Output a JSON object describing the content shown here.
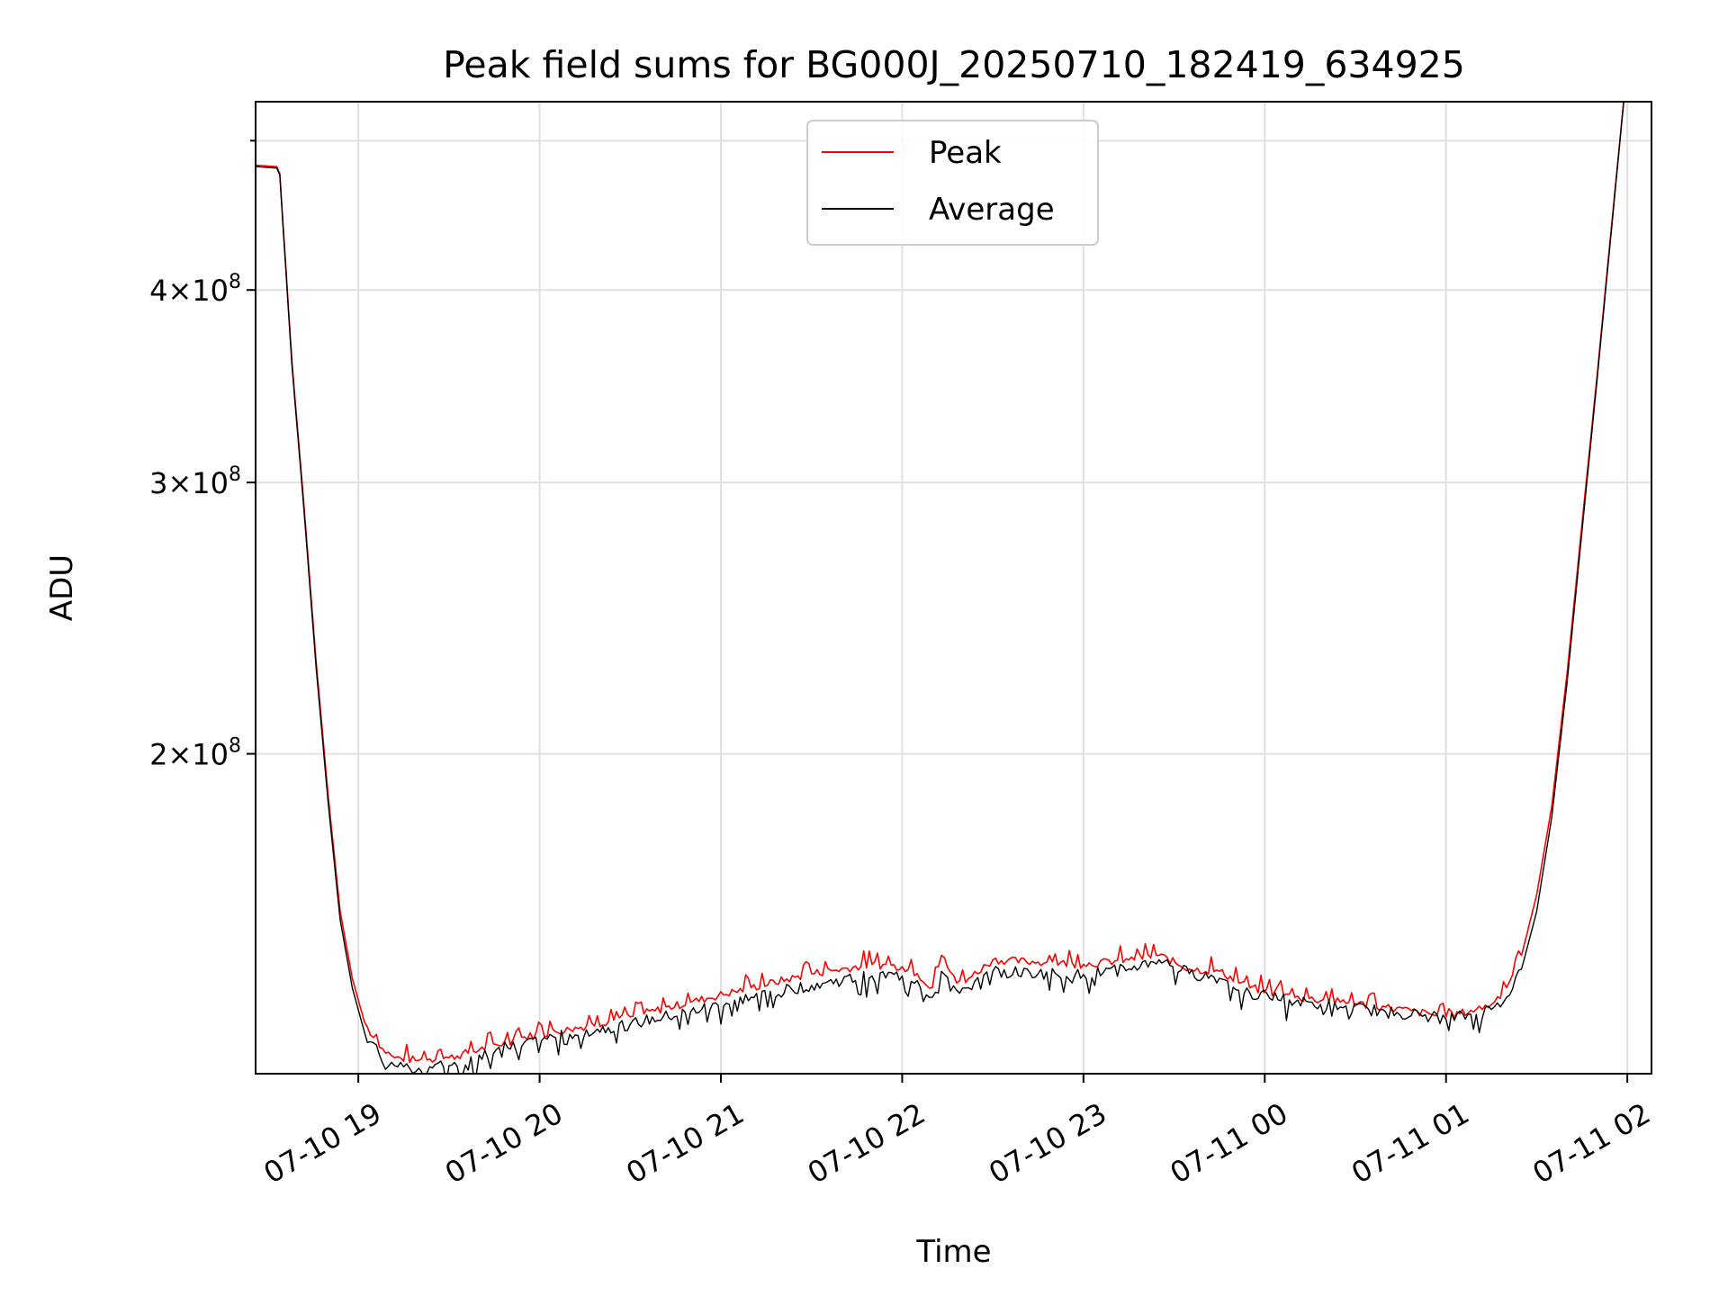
{
  "chart_data": {
    "type": "line",
    "title": "Peak field sums for BG000J_20250710_182419_634925",
    "xlabel": "Time",
    "ylabel": "ADU",
    "x_ticks": [
      "07-10 19",
      "07-10 20",
      "07-10 21",
      "07-10 22",
      "07-10 23",
      "07-11 00",
      "07-11 01",
      "07-11 02"
    ],
    "x_tick_times": [
      "2025-07-10 19:00",
      "2025-07-10 20:00",
      "2025-07-10 21:00",
      "2025-07-10 22:00",
      "2025-07-10 23:00",
      "2025-07-11 00:00",
      "2025-07-11 01:00",
      "2025-07-11 02:00"
    ],
    "y_ticks": [
      {
        "value": 200000000,
        "mantissa": "2",
        "base": "10",
        "exponent": "8"
      },
      {
        "value": 300000000,
        "mantissa": "3",
        "base": "10",
        "exponent": "8"
      },
      {
        "value": 400000000,
        "mantissa": "4",
        "base": "10",
        "exponent": "8"
      }
    ],
    "y_scale": "log",
    "xlim": [
      "2025-07-10 18:26",
      "2025-07-11 02:08"
    ],
    "ylim": [
      124000000,
      530000000
    ],
    "grid": true,
    "legend_position": "top-center",
    "series": [
      {
        "name": "Peak",
        "color": "#ff0000",
        "x": [
          "2025-07-10 18:26",
          "2025-07-10 18:33",
          "2025-07-10 18:34",
          "2025-07-10 18:38",
          "2025-07-10 18:42",
          "2025-07-10 18:46",
          "2025-07-10 18:50",
          "2025-07-10 18:54",
          "2025-07-10 18:58",
          "2025-07-10 19:02",
          "2025-07-10 19:07",
          "2025-07-10 19:12",
          "2025-07-10 19:20",
          "2025-07-10 19:30",
          "2025-07-10 19:40",
          "2025-07-10 19:55",
          "2025-07-10 20:10",
          "2025-07-10 20:30",
          "2025-07-10 20:50",
          "2025-07-10 21:10",
          "2025-07-10 21:30",
          "2025-07-10 21:50",
          "2025-07-10 22:00",
          "2025-07-10 22:05",
          "2025-07-10 22:10",
          "2025-07-10 22:13",
          "2025-07-10 22:18",
          "2025-07-10 22:22",
          "2025-07-10 22:30",
          "2025-07-10 22:45",
          "2025-07-10 23:00",
          "2025-07-10 23:15",
          "2025-07-10 23:25",
          "2025-07-10 23:35",
          "2025-07-10 23:45",
          "2025-07-10 23:55",
          "2025-07-11 00:10",
          "2025-07-11 00:25",
          "2025-07-11 00:40",
          "2025-07-11 00:55",
          "2025-07-11 01:00",
          "2025-07-11 01:10",
          "2025-07-11 01:15",
          "2025-07-11 01:20",
          "2025-07-11 01:25",
          "2025-07-11 01:30",
          "2025-07-11 01:35",
          "2025-07-11 01:40",
          "2025-07-11 01:45",
          "2025-07-11 01:50",
          "2025-07-11 01:55",
          "2025-07-11 01:59"
        ],
        "values": [
          482000000,
          481000000,
          476000000,
          360000000,
          290000000,
          230000000,
          188000000,
          158000000,
          143000000,
          134000000,
          129000000,
          127000000,
          126500000,
          127000000,
          128500000,
          131000000,
          132500000,
          135000000,
          138000000,
          141000000,
          144000000,
          146000000,
          145500000,
          144000000,
          141000000,
          148000000,
          142000000,
          143000000,
          147000000,
          146500000,
          146000000,
          147000000,
          148000000,
          145000000,
          144500000,
          141000000,
          139000000,
          138000000,
          137000000,
          135500000,
          135000000,
          136500000,
          137500000,
          141000000,
          148000000,
          162000000,
          185000000,
          225000000,
          282000000,
          352000000,
          445000000,
          535000000
        ]
      },
      {
        "name": "Average",
        "color": "#000000",
        "x": [
          "2025-07-10 18:26",
          "2025-07-10 18:33",
          "2025-07-10 18:34",
          "2025-07-10 18:38",
          "2025-07-10 18:42",
          "2025-07-10 18:46",
          "2025-07-10 18:50",
          "2025-07-10 18:54",
          "2025-07-10 18:58",
          "2025-07-10 19:02",
          "2025-07-10 19:07",
          "2025-07-10 19:12",
          "2025-07-10 19:20",
          "2025-07-10 19:30",
          "2025-07-10 19:40",
          "2025-07-10 19:55",
          "2025-07-10 20:10",
          "2025-07-10 20:30",
          "2025-07-10 20:50",
          "2025-07-10 21:10",
          "2025-07-10 21:30",
          "2025-07-10 21:50",
          "2025-07-10 22:00",
          "2025-07-10 22:05",
          "2025-07-10 22:10",
          "2025-07-10 22:13",
          "2025-07-10 22:18",
          "2025-07-10 22:22",
          "2025-07-10 22:30",
          "2025-07-10 22:45",
          "2025-07-10 23:00",
          "2025-07-10 23:15",
          "2025-07-10 23:25",
          "2025-07-10 23:35",
          "2025-07-10 23:45",
          "2025-07-10 23:55",
          "2025-07-11 00:10",
          "2025-07-11 00:25",
          "2025-07-11 00:40",
          "2025-07-11 00:55",
          "2025-07-11 01:00",
          "2025-07-11 01:10",
          "2025-07-11 01:15",
          "2025-07-11 01:20",
          "2025-07-11 01:25",
          "2025-07-11 01:30",
          "2025-07-11 01:35",
          "2025-07-11 01:40",
          "2025-07-11 01:45",
          "2025-07-11 01:50",
          "2025-07-11 01:55",
          "2025-07-11 01:59"
        ],
        "values": [
          481000000,
          480000000,
          475000000,
          358000000,
          288000000,
          228000000,
          186000000,
          156000000,
          141000000,
          132000000,
          127500000,
          125500000,
          125000000,
          125500000,
          127500000,
          130000000,
          131500000,
          133500000,
          136000000,
          139000000,
          141500000,
          143500000,
          143500000,
          142500000,
          139000000,
          144500000,
          140500000,
          141000000,
          144500000,
          144000000,
          143800000,
          145000000,
          147000000,
          144000000,
          143000000,
          140000000,
          138000000,
          137000000,
          136000000,
          135000000,
          134500000,
          135500000,
          136500000,
          139000000,
          145000000,
          158000000,
          182000000,
          222000000,
          279000000,
          350000000,
          443000000,
          535000000
        ]
      }
    ]
  }
}
